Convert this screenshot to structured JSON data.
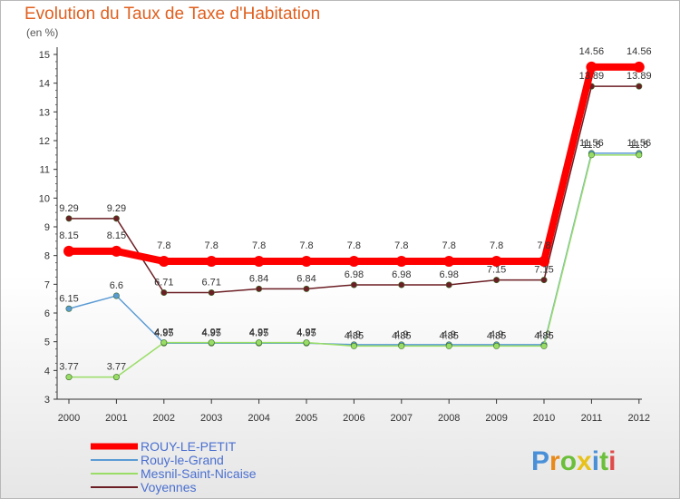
{
  "chart_data": {
    "type": "line",
    "title": "Evolution du Taux de Taxe d'Habitation",
    "unit_label": "(en %)",
    "x": [
      "2000",
      "2001",
      "2002",
      "2003",
      "2004",
      "2005",
      "2006",
      "2007",
      "2008",
      "2009",
      "2010",
      "2011",
      "2012"
    ],
    "ylim": [
      3,
      15
    ],
    "yticks": [
      3,
      4,
      5,
      6,
      7,
      8,
      9,
      10,
      11,
      12,
      13,
      14,
      15
    ],
    "grid": false,
    "legend_position": "bottom-left",
    "series": [
      {
        "name": "ROUY-LE-PETIT",
        "color": "#ff0000",
        "values": [
          8.15,
          8.15,
          7.8,
          7.8,
          7.8,
          7.8,
          7.8,
          7.8,
          7.8,
          7.8,
          7.8,
          14.56,
          14.56
        ],
        "labels": [
          "8.15",
          "8.15",
          "7.8",
          "7.8",
          "7.8",
          "7.8",
          "7.8",
          "7.8",
          "7.8",
          "7.8",
          "7.8",
          "14.56",
          "14.56"
        ]
      },
      {
        "name": "Rouy-le-Grand",
        "color": "#5b9bd5",
        "values": [
          6.15,
          6.6,
          4.95,
          4.95,
          4.95,
          4.95,
          4.9,
          4.9,
          4.9,
          4.9,
          4.9,
          11.56,
          11.56
        ],
        "labels": [
          "6.15",
          "6.6",
          "4.95",
          "4.95",
          "4.95",
          "4.95",
          "4.9",
          "4.9",
          "4.9",
          "4.9",
          "4.9",
          "11.56",
          "11.56"
        ]
      },
      {
        "name": "Mesnil-Saint-Nicaise",
        "color": "#99dd66",
        "values": [
          3.77,
          3.77,
          4.97,
          4.97,
          4.97,
          4.97,
          4.85,
          4.85,
          4.85,
          4.85,
          4.85,
          11.5,
          11.5
        ],
        "labels": [
          "3.77",
          "3.77",
          "4.97",
          "4.97",
          "4.97",
          "4.97",
          "4.85",
          "4.85",
          "4.85",
          "4.85",
          "4.85",
          "11.5",
          "11.5"
        ]
      },
      {
        "name": "Voyennes",
        "color": "#6b1e24",
        "values": [
          9.29,
          9.29,
          6.71,
          6.71,
          6.84,
          6.84,
          6.98,
          6.98,
          6.98,
          7.15,
          7.15,
          13.89,
          13.89
        ],
        "labels": [
          "9.29",
          "9.29",
          "6.71",
          "6.71",
          "6.84",
          "6.84",
          "6.98",
          "6.98",
          "6.98",
          "7.15",
          "7.15",
          "13.89",
          "13.89"
        ]
      }
    ]
  },
  "branding": {
    "logo_text": "Proxiti",
    "logo_colors": [
      "#4a90d9",
      "#e88a1a",
      "#6bbf3a",
      "#e8c21a",
      "#4a90d9",
      "#6bbf3a",
      "#e04a4a"
    ]
  }
}
